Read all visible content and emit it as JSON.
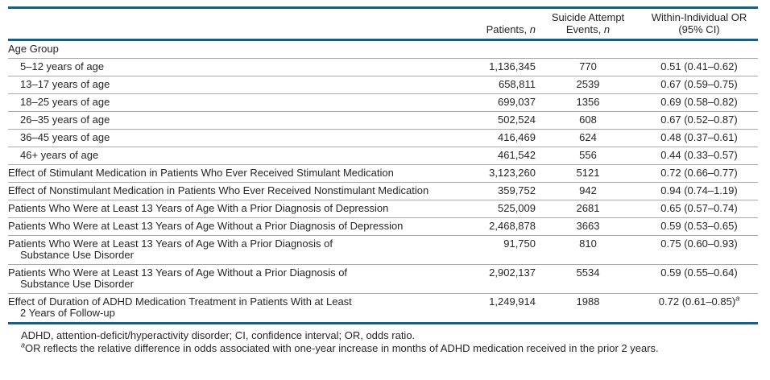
{
  "colors": {
    "rule_teal": "#1e5c80",
    "separator_gray": "#a9a9a9",
    "text": "#262626"
  },
  "table": {
    "header": {
      "patients": {
        "text": "Patients, ",
        "italic": "n"
      },
      "events": {
        "line1": "Suicide Attempt",
        "line2_text": "Events, ",
        "italic": "n"
      },
      "or": {
        "line1": "Within-Individual OR",
        "line2": "(95% CI)"
      }
    },
    "rows": [
      {
        "label": "Age Group",
        "section": true
      },
      {
        "label": "5–12 years of age",
        "indent": true,
        "patients": "1,136,345",
        "events": "770",
        "or": "0.51 (0.41–0.62)"
      },
      {
        "label": "13–17 years of age",
        "indent": true,
        "patients": "658,811",
        "events": "2539",
        "or": "0.67 (0.59–0.75)"
      },
      {
        "label": "18–25 years of age",
        "indent": true,
        "patients": "699,037",
        "events": "1356",
        "or": "0.69 (0.58–0.82)"
      },
      {
        "label": "26–35 years of age",
        "indent": true,
        "patients": "502,524",
        "events": "608",
        "or": "0.67 (0.52–0.87)"
      },
      {
        "label": "36–45 years of age",
        "indent": true,
        "patients": "416,469",
        "events": "624",
        "or": "0.48 (0.37–0.61)"
      },
      {
        "label": "46+ years of age",
        "indent": true,
        "patients": "461,542",
        "events": "556",
        "or": "0.44 (0.33–0.57)"
      },
      {
        "label": "Effect of Stimulant Medication in Patients Who Ever Received Stimulant Medication",
        "patients": "3,123,260",
        "events": "5121",
        "or": "0.72 (0.66–0.77)"
      },
      {
        "label": "Effect of Nonstimulant Medication in Patients Who Ever Received Nonstimulant Medication",
        "patients": "359,752",
        "events": "942",
        "or": "0.94 (0.74–1.19)"
      },
      {
        "label": "Patients Who Were at Least 13 Years of Age With a Prior Diagnosis of Depression",
        "patients": "525,009",
        "events": "2681",
        "or": "0.65 (0.57–0.74)"
      },
      {
        "label": "Patients Who Were at Least 13 Years of Age Without a Prior Diagnosis of Depression",
        "patients": "2,468,878",
        "events": "3663",
        "or": "0.59 (0.53–0.65)"
      },
      {
        "label": "Patients Who Were at Least 13 Years of Age With a Prior Diagnosis of",
        "label2": "Substance Use Disorder",
        "patients": "91,750",
        "events": "810",
        "or": "0.75 (0.60–0.93)"
      },
      {
        "label": "Patients Who Were at Least 13 Years of Age Without a Prior Diagnosis of",
        "label2": "Substance Use Disorder",
        "patients": "2,902,137",
        "events": "5534",
        "or": "0.59 (0.55–0.64)"
      },
      {
        "label": "Effect of Duration of ADHD Medication Treatment in Patients With at Least",
        "label2": "2 Years of Follow-up",
        "patients": "1,249,914",
        "events": "1988",
        "or": "0.72 (0.61–0.85)",
        "or_sup": "a"
      }
    ]
  },
  "footnotes": {
    "abbreviations": "ADHD, attention-deficit/hyperactivity disorder; CI, confidence interval; OR, odds ratio.",
    "a_marker": "a",
    "a_text": "OR reflects the relative difference in odds associated with one-year increase in months of ADHD medication received in the prior 2 years."
  }
}
